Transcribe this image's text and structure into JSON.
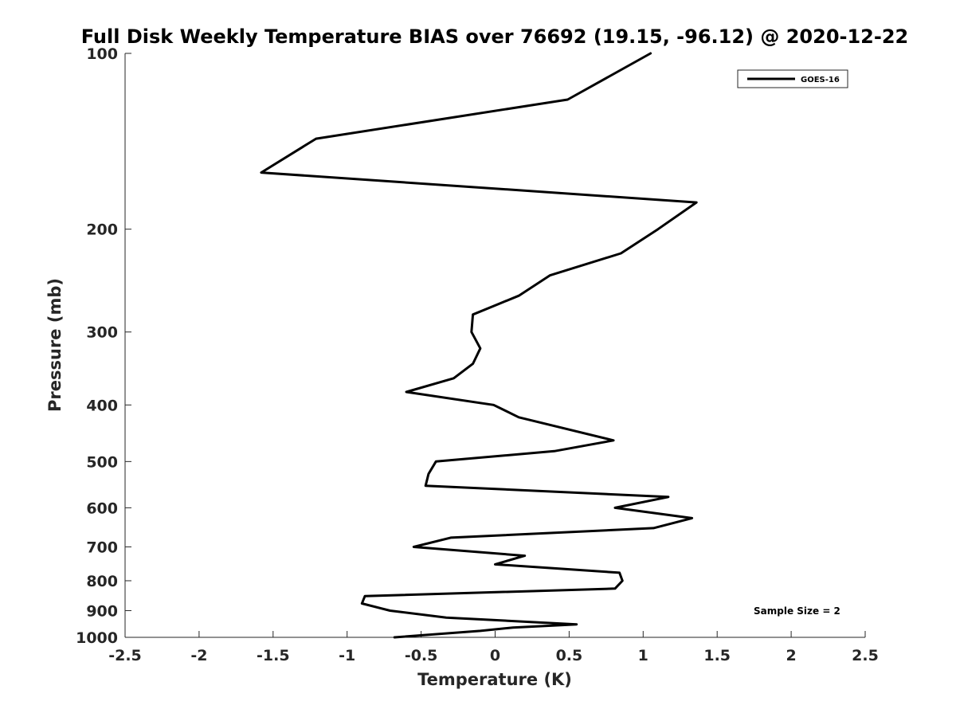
{
  "chart_data": {
    "type": "line",
    "title": "Full Disk Weekly Temperature BIAS over 76692 (19.15, -96.12) @ 2020-12-22",
    "xlabel": "Temperature (K)",
    "ylabel": "Pressure (mb)",
    "xlim": [
      -2.5,
      2.5
    ],
    "ylim": [
      1000,
      100
    ],
    "y_scale": "log",
    "y_reversed": true,
    "grid": false,
    "x_ticks": [
      -2.5,
      -2,
      -1.5,
      -1,
      -0.5,
      0,
      0.5,
      1,
      1.5,
      2,
      2.5
    ],
    "x_tick_labels": [
      "-2.5",
      "-2",
      "-1.5",
      "-1",
      "-0.5",
      "0",
      "0.5",
      "1",
      "1.5",
      "2",
      "2.5"
    ],
    "y_ticks": [
      100,
      200,
      300,
      400,
      500,
      600,
      700,
      800,
      900,
      1000
    ],
    "y_tick_labels": [
      "100",
      "200",
      "300",
      "400",
      "500",
      "600",
      "700",
      "800",
      "900",
      "1000"
    ],
    "legend": {
      "position": "top-right",
      "entries": [
        "GOES-16"
      ]
    },
    "annotation": "Sample Size = 2",
    "series": [
      {
        "name": "GOES-16",
        "color": "#000000",
        "points": [
          {
            "x": 1.05,
            "y": 100
          },
          {
            "x": 0.49,
            "y": 120
          },
          {
            "x": -1.21,
            "y": 140
          },
          {
            "x": -1.58,
            "y": 160
          },
          {
            "x": 1.36,
            "y": 180
          },
          {
            "x": 1.1,
            "y": 200
          },
          {
            "x": 0.85,
            "y": 220
          },
          {
            "x": 0.37,
            "y": 240
          },
          {
            "x": 0.16,
            "y": 260
          },
          {
            "x": -0.15,
            "y": 280
          },
          {
            "x": -0.16,
            "y": 300
          },
          {
            "x": -0.1,
            "y": 320
          },
          {
            "x": -0.15,
            "y": 340
          },
          {
            "x": -0.28,
            "y": 360
          },
          {
            "x": -0.6,
            "y": 380
          },
          {
            "x": -0.01,
            "y": 400
          },
          {
            "x": 0.16,
            "y": 420
          },
          {
            "x": 0.8,
            "y": 460
          },
          {
            "x": 0.4,
            "y": 480
          },
          {
            "x": -0.4,
            "y": 500
          },
          {
            "x": -0.45,
            "y": 525
          },
          {
            "x": -0.47,
            "y": 550
          },
          {
            "x": 1.17,
            "y": 575
          },
          {
            "x": 0.81,
            "y": 600
          },
          {
            "x": 1.33,
            "y": 625
          },
          {
            "x": 1.07,
            "y": 650
          },
          {
            "x": -0.3,
            "y": 675
          },
          {
            "x": -0.55,
            "y": 700
          },
          {
            "x": 0.2,
            "y": 725
          },
          {
            "x": 0.0,
            "y": 750
          },
          {
            "x": 0.84,
            "y": 775
          },
          {
            "x": 0.86,
            "y": 800
          },
          {
            "x": 0.81,
            "y": 825
          },
          {
            "x": -0.88,
            "y": 850
          },
          {
            "x": -0.9,
            "y": 875
          },
          {
            "x": -0.71,
            "y": 900
          },
          {
            "x": -0.33,
            "y": 925
          },
          {
            "x": 0.55,
            "y": 950
          },
          {
            "x": 0.12,
            "y": 962
          },
          {
            "x": -0.1,
            "y": 975
          },
          {
            "x": -0.68,
            "y": 1000
          }
        ]
      }
    ]
  }
}
